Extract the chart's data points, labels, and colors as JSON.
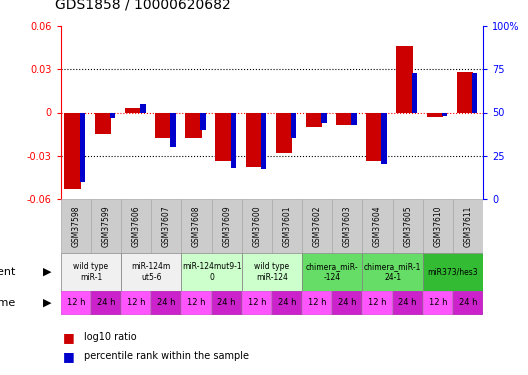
{
  "title": "GDS1858 / 10000620682",
  "samples": [
    "GSM37598",
    "GSM37599",
    "GSM37606",
    "GSM37607",
    "GSM37608",
    "GSM37609",
    "GSM37600",
    "GSM37601",
    "GSM37602",
    "GSM37603",
    "GSM37604",
    "GSM37605",
    "GSM37610",
    "GSM37611"
  ],
  "log10_ratio": [
    -0.053,
    -0.015,
    0.003,
    -0.018,
    -0.018,
    -0.034,
    -0.038,
    -0.028,
    -0.01,
    -0.009,
    -0.034,
    0.046,
    -0.003,
    0.028
  ],
  "percentile_rank": [
    10,
    47,
    55,
    30,
    40,
    18,
    17,
    35,
    44,
    43,
    20,
    73,
    48,
    73
  ],
  "agents": [
    {
      "label": "wild type\nmiR-1",
      "span": [
        0,
        2
      ],
      "color": "#f0f0f0"
    },
    {
      "label": "miR-124m\nut5-6",
      "span": [
        2,
        4
      ],
      "color": "#f0f0f0"
    },
    {
      "label": "miR-124mut9-1\n0",
      "span": [
        4,
        6
      ],
      "color": "#ccffcc"
    },
    {
      "label": "wild type\nmiR-124",
      "span": [
        6,
        8
      ],
      "color": "#ccffcc"
    },
    {
      "label": "chimera_miR-\n-124",
      "span": [
        8,
        10
      ],
      "color": "#66dd66"
    },
    {
      "label": "chimera_miR-1\n24-1",
      "span": [
        10,
        12
      ],
      "color": "#66dd66"
    },
    {
      "label": "miR373/hes3",
      "span": [
        12,
        14
      ],
      "color": "#33bb33"
    }
  ],
  "ylim": [
    -0.06,
    0.06
  ],
  "yticks_left": [
    -0.06,
    -0.03,
    0,
    0.03,
    0.06
  ],
  "yticks_right": [
    0,
    25,
    50,
    75,
    100
  ],
  "bar_color_red": "#cc0000",
  "bar_color_blue": "#0000cc",
  "bar_width": 0.55,
  "pct_bar_width": 0.18,
  "time_labels": [
    "12 h",
    "24 h",
    "12 h",
    "24 h",
    "12 h",
    "24 h",
    "12 h",
    "24 h",
    "12 h",
    "24 h",
    "12 h",
    "24 h",
    "12 h",
    "24 h"
  ],
  "time_color_light": "#ff55ff",
  "time_color_dark": "#cc22cc",
  "sample_bg_color": "#cccccc",
  "sample_border_color": "#aaaaaa"
}
